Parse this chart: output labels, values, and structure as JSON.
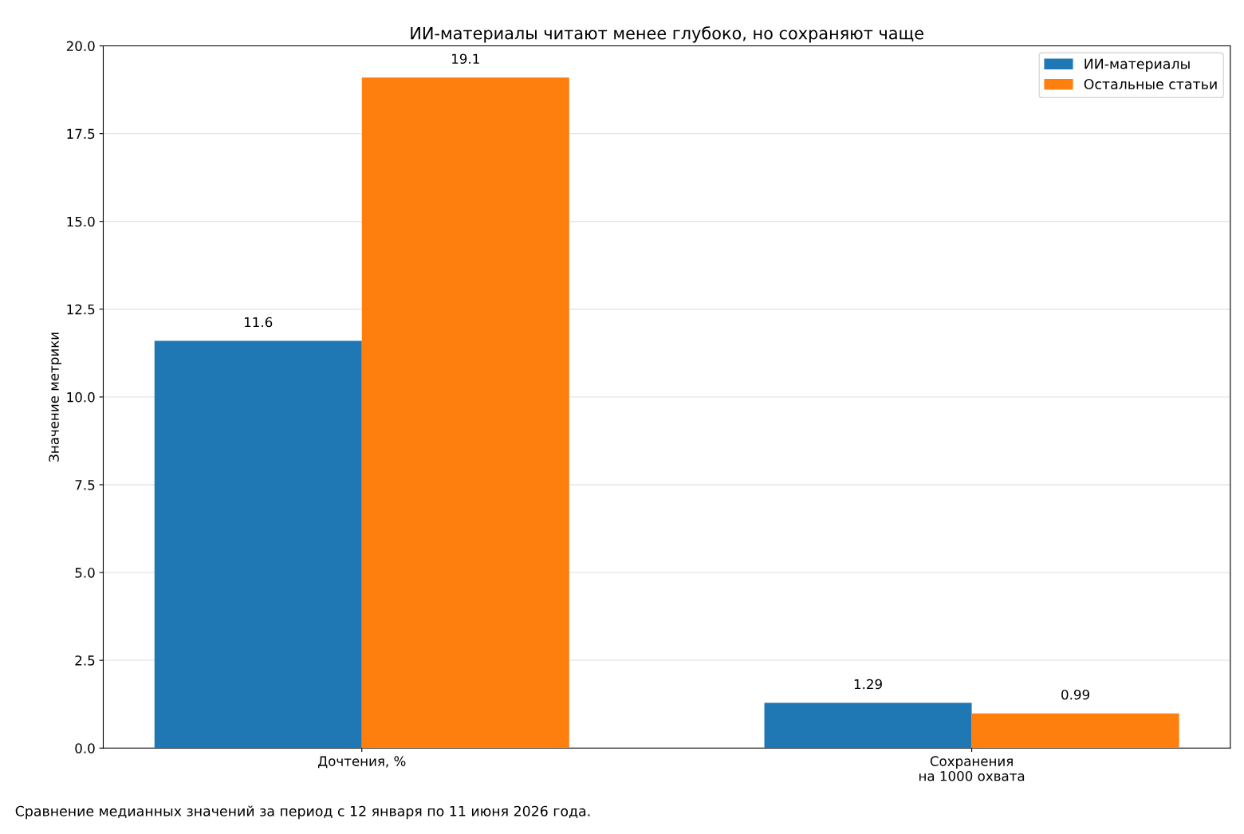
{
  "chart_data": {
    "type": "bar",
    "title": "ИИ-материалы читают менее глубоко, но сохраняют чаще",
    "categories": [
      "Дочтения, %",
      "Сохранения\nна 1000 охвата"
    ],
    "series": [
      {
        "name": "ИИ-материалы",
        "color": "#1f77b4",
        "values": [
          11.6,
          1.29
        ]
      },
      {
        "name": "Остальные статьи",
        "color": "#ff7f0e",
        "values": [
          19.1,
          0.99
        ]
      }
    ],
    "ylabel": "Значение метрики",
    "ylim": [
      0,
      20
    ],
    "yticks": [
      {
        "value": 0,
        "label": "0.0"
      },
      2.5,
      {
        "value": 5,
        "label": "5.0"
      },
      7.5,
      {
        "value": 10,
        "label": "10.0"
      },
      12.5,
      {
        "value": 15,
        "label": "15.0"
      },
      17.5,
      {
        "value": 20,
        "label": "20.0"
      }
    ],
    "grid": "y",
    "legend": "top right",
    "data_labels": true,
    "annotations": [
      "Сравнение медианных значений за период с 12 января по 11 июня 2026 года."
    ]
  }
}
